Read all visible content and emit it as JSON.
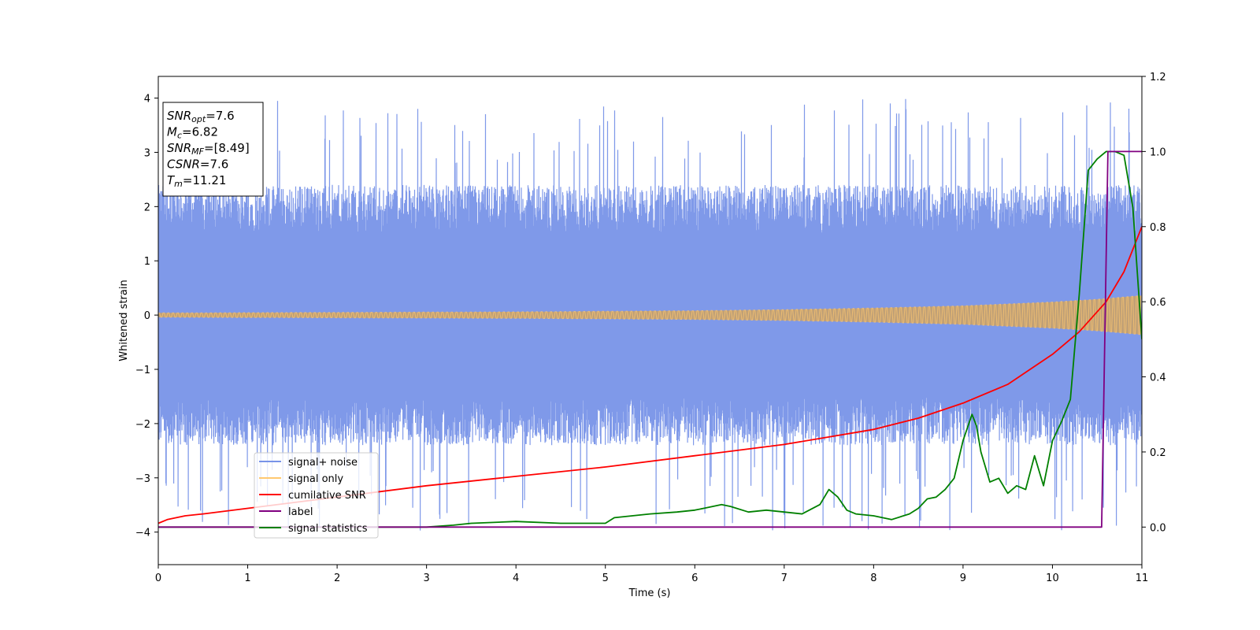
{
  "chart_data": {
    "type": "line",
    "xlabel": "Time (s)",
    "ylabel": "Whitened strain",
    "xlim": [
      0,
      11
    ],
    "ylim": [
      -4.6,
      4.4
    ],
    "y2lim": [
      -0.1,
      1.2
    ],
    "x_ticks": [
      0,
      1,
      2,
      3,
      4,
      5,
      6,
      7,
      8,
      9,
      10,
      11
    ],
    "y_ticks": [
      4,
      3,
      2,
      1,
      0,
      -1,
      -2,
      -3,
      -4
    ],
    "y_tick_labels": [
      "4",
      "3",
      "2",
      "1",
      "0",
      "−1",
      "−2",
      "−3",
      "−4"
    ],
    "y2_ticks": [
      0.0,
      0.2,
      0.4,
      0.6,
      0.8,
      1.0,
      1.2
    ],
    "y2_tick_labels": [
      "0.0",
      "0.2",
      "0.4",
      "0.6",
      "0.8",
      "1.0",
      "1.2"
    ],
    "legend_position": "lower-left",
    "grid": false,
    "info_box": [
      {
        "name": "SNR",
        "sub": "opt",
        "val": "=7.6"
      },
      {
        "name": "M",
        "sub": "c",
        "val": "=6.82"
      },
      {
        "name": "SNR",
        "sub": "MF",
        "val": "=[8.49]"
      },
      {
        "name": "CSNR",
        "sub": "",
        "val": "=7.6"
      },
      {
        "name": "T",
        "sub": "m",
        "val": "=11.21"
      }
    ],
    "series": [
      {
        "name": "signal+ noise",
        "axis": "left",
        "color": "#7893e8",
        "description_values": "noise band approx ±2 with spikes to about ±4"
      },
      {
        "name": "signal only",
        "axis": "left",
        "color": "#ffc870",
        "envelope_x": [
          0,
          2,
          4,
          6,
          7,
          8,
          9,
          10,
          10.5,
          11
        ],
        "envelope_y": [
          0.04,
          0.05,
          0.06,
          0.08,
          0.1,
          0.13,
          0.17,
          0.24,
          0.29,
          0.36
        ]
      },
      {
        "name": "cumilative SNR",
        "axis": "right",
        "color": "#ff0000",
        "x": [
          0,
          0.1,
          0.3,
          0.5,
          1,
          2,
          3,
          4,
          5,
          6,
          7,
          8,
          8.5,
          9,
          9.5,
          10,
          10.3,
          10.6,
          10.8,
          11
        ],
        "y": [
          0.01,
          0.02,
          0.03,
          0.035,
          0.05,
          0.08,
          0.11,
          0.135,
          0.16,
          0.19,
          0.22,
          0.26,
          0.29,
          0.33,
          0.38,
          0.46,
          0.52,
          0.6,
          0.68,
          0.8
        ]
      },
      {
        "name": "label",
        "axis": "right",
        "color": "#800080",
        "x": [
          0,
          10.55,
          10.62,
          11
        ],
        "y": [
          0,
          0,
          1,
          1
        ]
      },
      {
        "name": "signal statistics",
        "axis": "right",
        "color": "#008000",
        "x": [
          0,
          1,
          2,
          3,
          3.3,
          3.5,
          4,
          4.5,
          5,
          5.1,
          5.3,
          5.5,
          5.8,
          6,
          6.1,
          6.3,
          6.4,
          6.6,
          6.8,
          7,
          7.2,
          7.4,
          7.5,
          7.6,
          7.7,
          7.8,
          8,
          8.2,
          8.4,
          8.5,
          8.6,
          8.7,
          8.8,
          8.9,
          9.0,
          9.1,
          9.15,
          9.2,
          9.3,
          9.4,
          9.5,
          9.6,
          9.7,
          9.8,
          9.9,
          10.0,
          10.1,
          10.2,
          10.3,
          10.4,
          10.5,
          10.6,
          10.7,
          10.8,
          10.9,
          11.0
        ],
        "y": [
          0.0,
          0.0,
          0.0,
          0.0,
          0.005,
          0.01,
          0.015,
          0.01,
          0.01,
          0.025,
          0.03,
          0.035,
          0.04,
          0.045,
          0.05,
          0.06,
          0.055,
          0.04,
          0.045,
          0.04,
          0.035,
          0.06,
          0.1,
          0.08,
          0.045,
          0.035,
          0.03,
          0.02,
          0.035,
          0.05,
          0.075,
          0.08,
          0.1,
          0.13,
          0.23,
          0.3,
          0.27,
          0.2,
          0.12,
          0.13,
          0.09,
          0.11,
          0.1,
          0.19,
          0.11,
          0.23,
          0.28,
          0.34,
          0.62,
          0.95,
          0.98,
          1.0,
          1.0,
          0.99,
          0.85,
          0.5
        ]
      }
    ]
  }
}
